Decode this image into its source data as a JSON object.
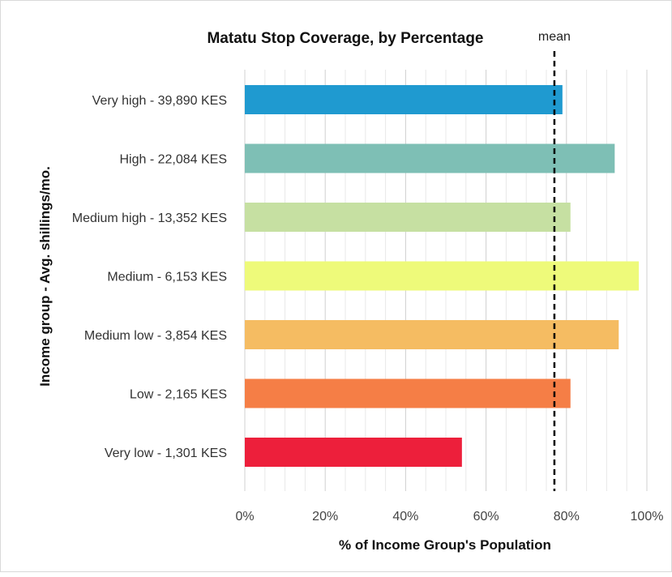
{
  "chart_data": {
    "type": "bar",
    "orientation": "horizontal",
    "title": "Matatu Stop Coverage, by Percentage",
    "xlabel": "% of Income Group's Population",
    "ylabel": "Income group - Avg. shillings/mo.",
    "xlim": [
      0,
      100
    ],
    "x_ticks": [
      "0%",
      "20%",
      "40%",
      "60%",
      "80%",
      "100%"
    ],
    "grid": "vertical",
    "categories": [
      "Very high - 39,890 KES",
      "High - 22,084 KES",
      "Medium high - 13,352 KES",
      "Medium - 6,153 KES",
      "Medium low - 3,854 KES",
      "Low - 2,165 KES",
      "Very low - 1,301 KES"
    ],
    "values": [
      79,
      92,
      81,
      98,
      93,
      81,
      54
    ],
    "colors": [
      "#1f9ad0",
      "#7ebfb5",
      "#c6e0a2",
      "#eefa7a",
      "#f5bc62",
      "#f57e46",
      "#ed1f3b"
    ],
    "mean": {
      "label": "mean",
      "value": 77
    }
  }
}
